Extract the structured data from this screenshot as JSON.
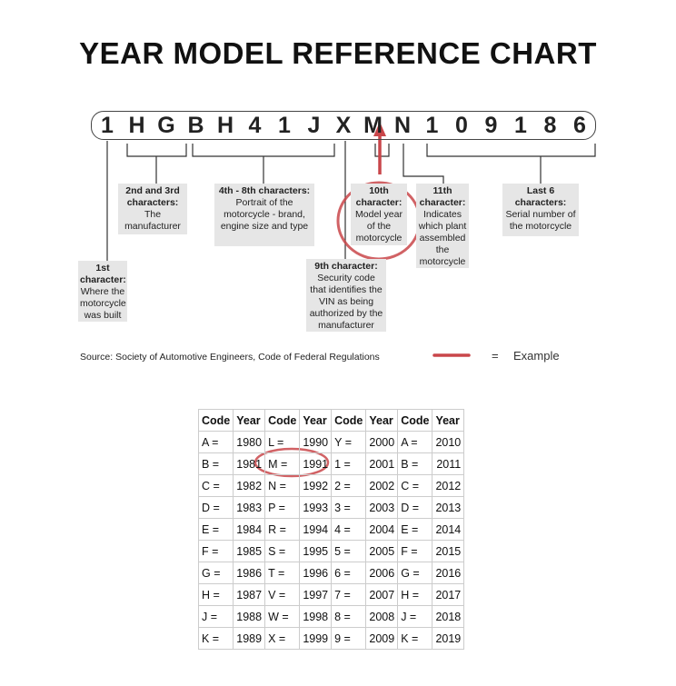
{
  "title": "YEAR MODEL REFERENCE CHART",
  "vin": [
    "1",
    "H",
    "G",
    "B",
    "H",
    "4",
    "1",
    "J",
    "X",
    "M",
    "N",
    "1",
    "0",
    "9",
    "1",
    "8",
    "6"
  ],
  "labels": {
    "first": {
      "head": "1st character:",
      "body": "Where the motorcycle was built"
    },
    "second_third": {
      "head": "2nd and 3rd characters:",
      "body": "The manufacturer"
    },
    "fourth_eighth": {
      "head": "4th - 8th characters:",
      "body": "Portrait of the motorcycle - brand, engine size and type"
    },
    "ninth": {
      "head": "9th character:",
      "body": "Security code that identifies the VIN as being authorized by the manufacturer"
    },
    "tenth": {
      "head": "10th character:",
      "body": "Model year of the motorcycle"
    },
    "eleventh": {
      "head": "11th character:",
      "body": "Indicates which plant assembled the motorcycle"
    },
    "last_six": {
      "head": "Last 6 characters:",
      "body": "Serial number of the motorcycle"
    }
  },
  "source": "Source:  Society of Automotive Engineers, Code of Federal Regulations",
  "legend": {
    "equals": "=",
    "label": "Example",
    "color": "#c9464a"
  },
  "table": {
    "headers": [
      "Code",
      "Year",
      "Code",
      "Year",
      "Code",
      "Year",
      "Code",
      "Year"
    ],
    "rows": [
      [
        "A =",
        "1980",
        "L =",
        "1990",
        "Y =",
        "2000",
        "A =",
        "2010"
      ],
      [
        "B =",
        "1981",
        "M =",
        "1991",
        "1 =",
        "2001",
        "B =",
        "2011"
      ],
      [
        "C =",
        "1982",
        "N =",
        "1992",
        "2 =",
        "2002",
        "C =",
        "2012"
      ],
      [
        "D =",
        "1983",
        "P =",
        "1993",
        "3 =",
        "2003",
        "D =",
        "2013"
      ],
      [
        "E =",
        "1984",
        "R =",
        "1994",
        "4 =",
        "2004",
        "E =",
        "2014"
      ],
      [
        "F =",
        "1985",
        "S =",
        "1995",
        "5 =",
        "2005",
        "F =",
        "2015"
      ],
      [
        "G =",
        "1986",
        "T =",
        "1996",
        "6 =",
        "2006",
        "G =",
        "2016"
      ],
      [
        "H =",
        "1987",
        "V =",
        "1997",
        "7 =",
        "2007",
        "H =",
        "2017"
      ],
      [
        "J =",
        "1988",
        "W =",
        "1998",
        "8 =",
        "2008",
        "J =",
        "2018"
      ],
      [
        "K =",
        "1989",
        "X =",
        "1999",
        "9 =",
        "2009",
        "K =",
        "2019"
      ]
    ],
    "highlighted": {
      "code": "M =",
      "year": "1991"
    }
  }
}
